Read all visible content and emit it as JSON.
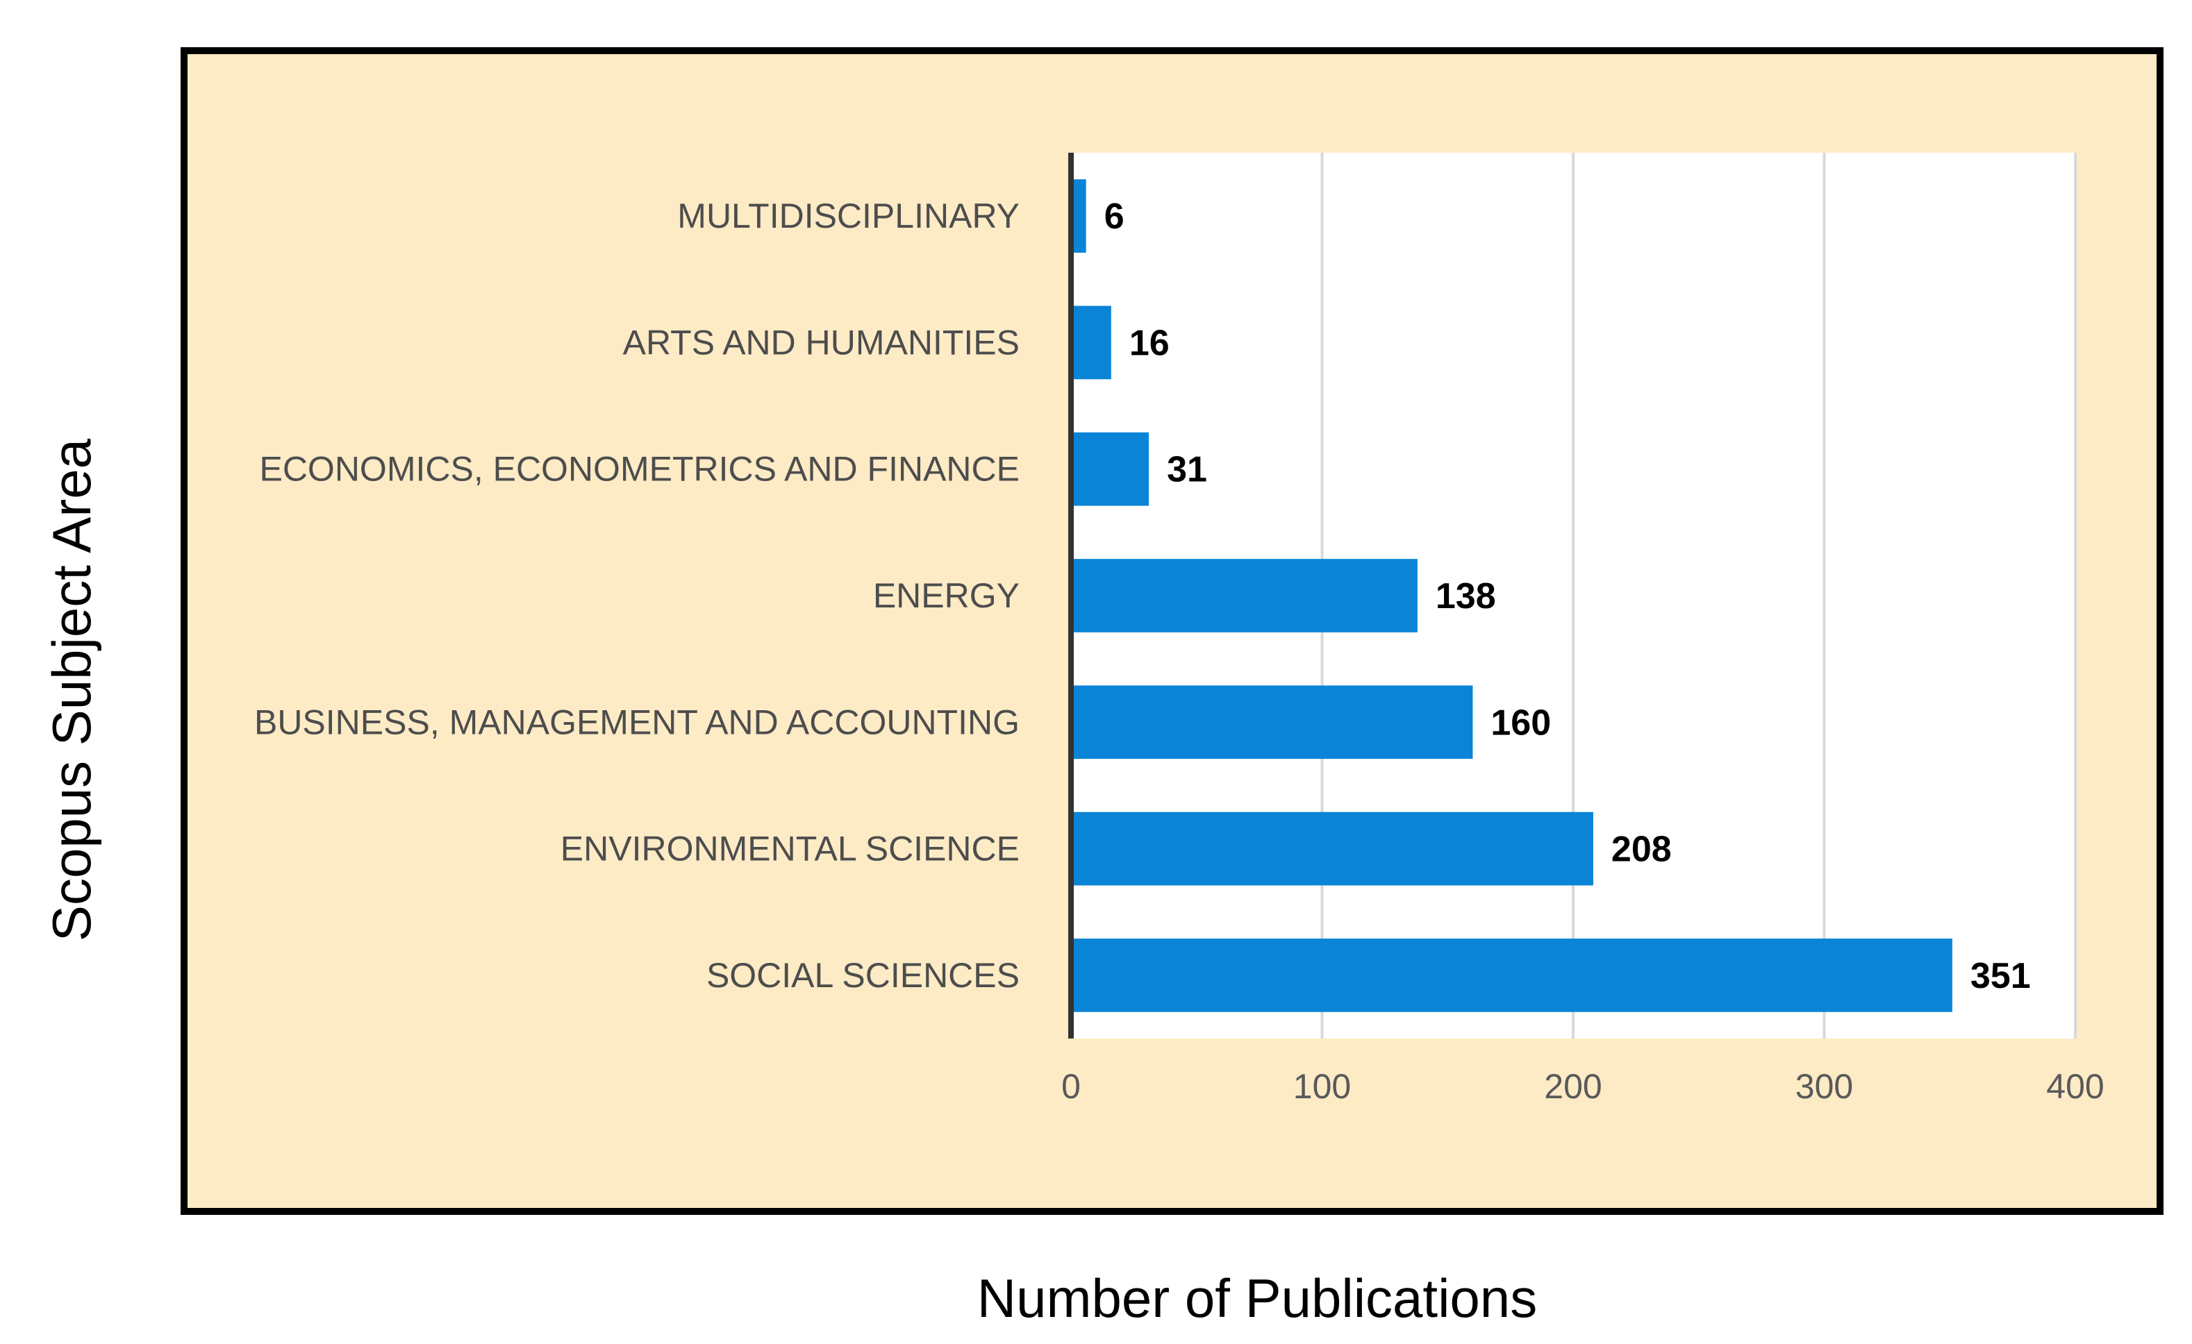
{
  "chart_data": {
    "type": "bar",
    "orientation": "horizontal",
    "categories": [
      "MULTIDISCIPLINARY",
      "ARTS AND HUMANITIES",
      "ECONOMICS, ECONOMETRICS AND FINANCE",
      "ENERGY",
      "BUSINESS, MANAGEMENT AND ACCOUNTING",
      "ENVIRONMENTAL SCIENCE",
      "SOCIAL SCIENCES"
    ],
    "values": [
      6,
      16,
      31,
      138,
      160,
      208,
      351
    ],
    "data_labels": [
      "6",
      "16",
      "31",
      "138",
      "160",
      "208",
      "351"
    ],
    "xticks": [
      "0",
      "100",
      "200",
      "300",
      "400"
    ],
    "xlim": [
      0,
      400
    ],
    "xlabel": "Number of Publications",
    "ylabel": "Scopus Subject Area",
    "grid": true,
    "colors": {
      "bar": "#0a84d6",
      "frame_bg": "#fdebc6",
      "plot_bg": "#ffffff",
      "grid": "#d9d9d9",
      "frame_border": "#000000"
    }
  }
}
